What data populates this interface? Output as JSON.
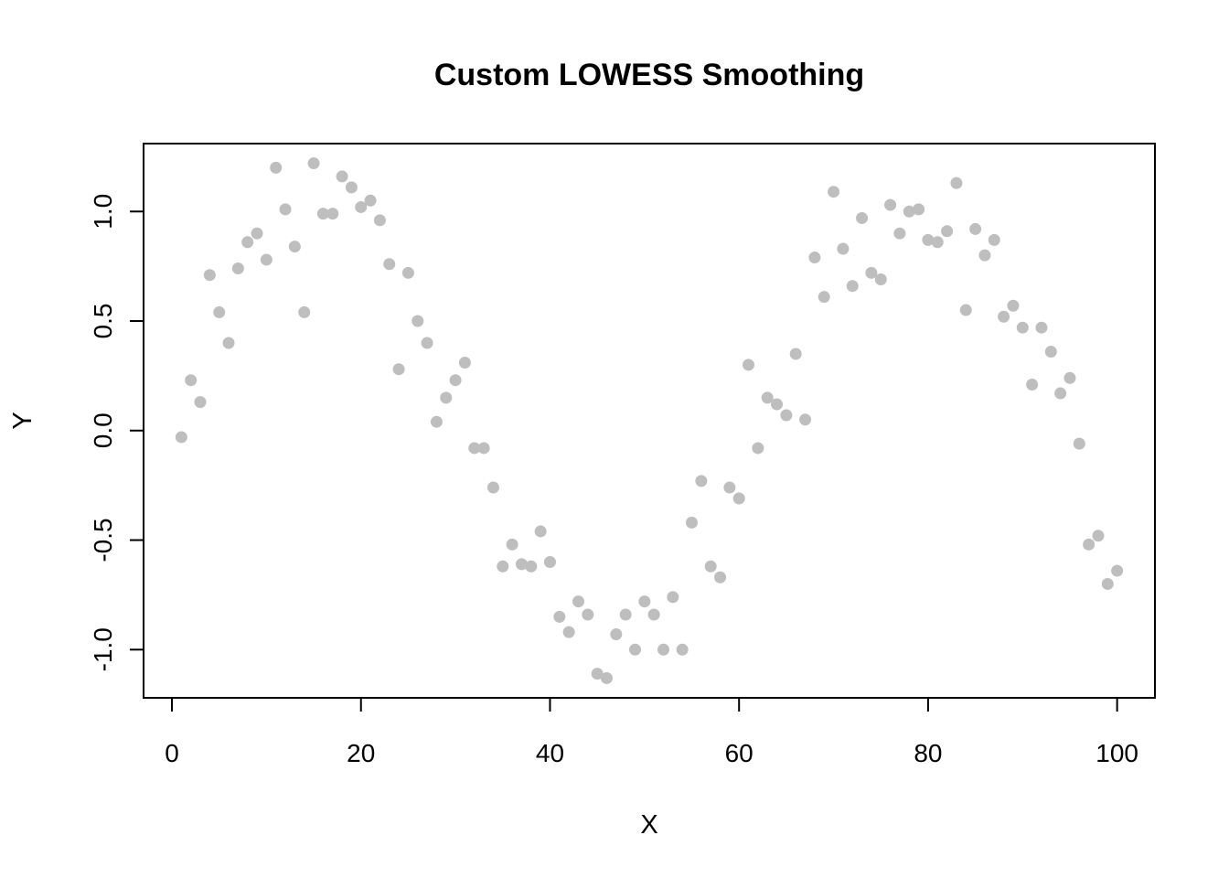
{
  "chart_data": {
    "type": "scatter",
    "title": "Custom LOWESS Smoothing",
    "xlabel": "X",
    "ylabel": "Y",
    "xlim": [
      -3,
      104
    ],
    "ylim": [
      -1.22,
      1.31
    ],
    "xticks": [
      0,
      20,
      40,
      60,
      80,
      100
    ],
    "yticks": [
      -1.0,
      -0.5,
      0.0,
      0.5,
      1.0
    ],
    "xtick_labels": [
      "0",
      "20",
      "40",
      "60",
      "80",
      "100"
    ],
    "ytick_labels": [
      "-1.0",
      "-0.5",
      "0.0",
      "0.5",
      "1.0"
    ],
    "grid": false,
    "point_color": "#bebebe",
    "series": [
      {
        "x": [
          1,
          2,
          3,
          4,
          5,
          6,
          7,
          8,
          9,
          10,
          11,
          12,
          13,
          14,
          15,
          16,
          17,
          18,
          19,
          20,
          21,
          22,
          23,
          24,
          25,
          26,
          27,
          28,
          29,
          30,
          31,
          32,
          33,
          34,
          35,
          36,
          37,
          38,
          39,
          40,
          41,
          42,
          43,
          44,
          45,
          46,
          47,
          48,
          49,
          50,
          51,
          52,
          53,
          54,
          55,
          56,
          57,
          58,
          59,
          60,
          61,
          62,
          63,
          64,
          65,
          66,
          67,
          68,
          69,
          70,
          71,
          72,
          73,
          74,
          75,
          76,
          77,
          78,
          79,
          80,
          81,
          82,
          83,
          84,
          85,
          86,
          87,
          88,
          89,
          90,
          91,
          92,
          93,
          94,
          95,
          96,
          97,
          98,
          99,
          100
        ],
        "y": [
          -0.03,
          0.23,
          0.13,
          0.71,
          0.54,
          0.4,
          0.74,
          0.86,
          0.9,
          0.78,
          1.2,
          1.01,
          0.84,
          0.54,
          1.22,
          0.99,
          0.99,
          1.16,
          1.11,
          1.02,
          1.05,
          0.96,
          0.76,
          0.28,
          0.72,
          0.5,
          0.4,
          0.04,
          0.15,
          0.23,
          0.31,
          -0.08,
          -0.08,
          -0.26,
          -0.62,
          -0.52,
          -0.61,
          -0.62,
          -0.46,
          -0.6,
          -0.85,
          -0.92,
          -0.78,
          -0.84,
          -1.11,
          -1.13,
          -0.93,
          -0.84,
          -1.0,
          -0.78,
          -0.84,
          -1.0,
          -0.76,
          -1.0,
          -0.42,
          -0.23,
          -0.62,
          -0.67,
          -0.26,
          -0.31,
          0.3,
          -0.08,
          0.15,
          0.12,
          0.07,
          0.35,
          0.05,
          0.79,
          0.61,
          1.09,
          0.83,
          0.66,
          0.97,
          0.72,
          0.69,
          1.03,
          0.9,
          1.0,
          1.01,
          0.87,
          0.86,
          0.91,
          1.13,
          0.55,
          0.92,
          0.8,
          0.87,
          0.52,
          0.57,
          0.47,
          0.21,
          0.47,
          0.36,
          0.17,
          0.24,
          -0.06,
          -0.52,
          -0.48,
          -0.7,
          -0.64
        ]
      }
    ]
  }
}
